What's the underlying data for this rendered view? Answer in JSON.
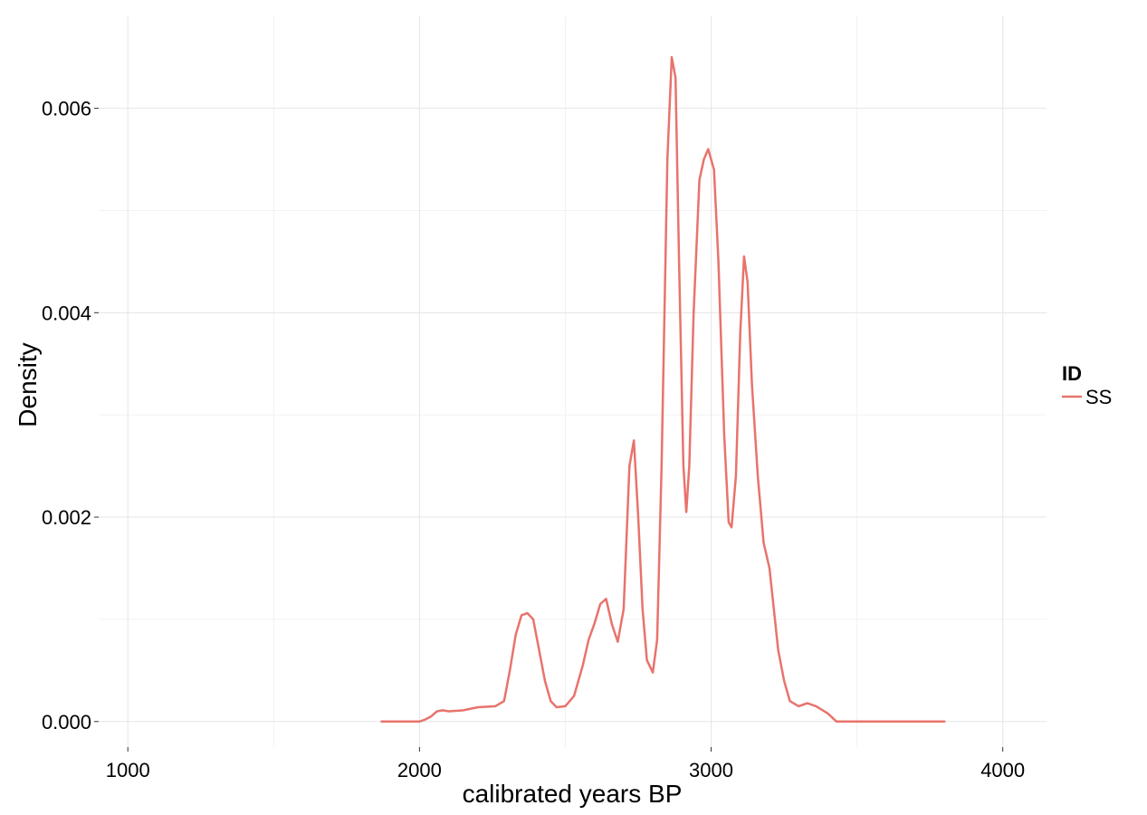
{
  "chart_data": {
    "type": "line",
    "xlabel": "calibrated years BP",
    "ylabel": "Density",
    "xlim": [
      900,
      4150
    ],
    "ylim": [
      -0.00025,
      0.0069
    ],
    "x_ticks": [
      1000,
      2000,
      3000,
      4000
    ],
    "x_tick_labels": [
      "1000",
      "2000",
      "3000",
      "4000"
    ],
    "y_ticks": [
      0.0,
      0.002,
      0.004,
      0.006
    ],
    "y_tick_labels": [
      "0.000",
      "0.002",
      "0.004",
      "0.006"
    ],
    "x_minor_ticks": [
      1500,
      2500,
      3500
    ],
    "y_minor_ticks": [
      0.001,
      0.003,
      0.005
    ],
    "grid": true,
    "legend": {
      "title": "ID",
      "position": "right"
    },
    "series": [
      {
        "name": "SS",
        "color": "#e8736c",
        "x": [
          1870,
          2000,
          2020,
          2040,
          2060,
          2080,
          2100,
          2150,
          2200,
          2260,
          2290,
          2310,
          2330,
          2350,
          2370,
          2390,
          2410,
          2430,
          2450,
          2470,
          2500,
          2530,
          2560,
          2580,
          2600,
          2620,
          2640,
          2660,
          2680,
          2700,
          2720,
          2735,
          2750,
          2765,
          2780,
          2800,
          2815,
          2830,
          2850,
          2865,
          2878,
          2890,
          2905,
          2915,
          2925,
          2940,
          2960,
          2975,
          2990,
          3010,
          3025,
          3045,
          3060,
          3070,
          3085,
          3100,
          3113,
          3125,
          3140,
          3160,
          3180,
          3200,
          3215,
          3230,
          3250,
          3270,
          3300,
          3330,
          3360,
          3400,
          3430,
          3460,
          3550,
          3800
        ],
        "y": [
          0.0,
          0.0,
          2e-05,
          5e-05,
          0.0001,
          0.00011,
          0.0001,
          0.00011,
          0.00014,
          0.00015,
          0.0002,
          0.0005,
          0.00085,
          0.00104,
          0.00106,
          0.001,
          0.0007,
          0.0004,
          0.0002,
          0.00014,
          0.00015,
          0.00025,
          0.00055,
          0.0008,
          0.00096,
          0.00115,
          0.0012,
          0.00095,
          0.00078,
          0.0011,
          0.0025,
          0.00275,
          0.002,
          0.0011,
          0.0006,
          0.00048,
          0.0008,
          0.0025,
          0.0055,
          0.0065,
          0.0063,
          0.0045,
          0.0025,
          0.00205,
          0.0025,
          0.004,
          0.0053,
          0.0055,
          0.0056,
          0.0054,
          0.0045,
          0.0028,
          0.00195,
          0.0019,
          0.0024,
          0.0038,
          0.00455,
          0.0043,
          0.0033,
          0.0024,
          0.00175,
          0.0015,
          0.0011,
          0.0007,
          0.0004,
          0.0002,
          0.00015,
          0.00018,
          0.00015,
          8e-05,
          0.0,
          0.0,
          0.0,
          0.0
        ]
      }
    ]
  }
}
